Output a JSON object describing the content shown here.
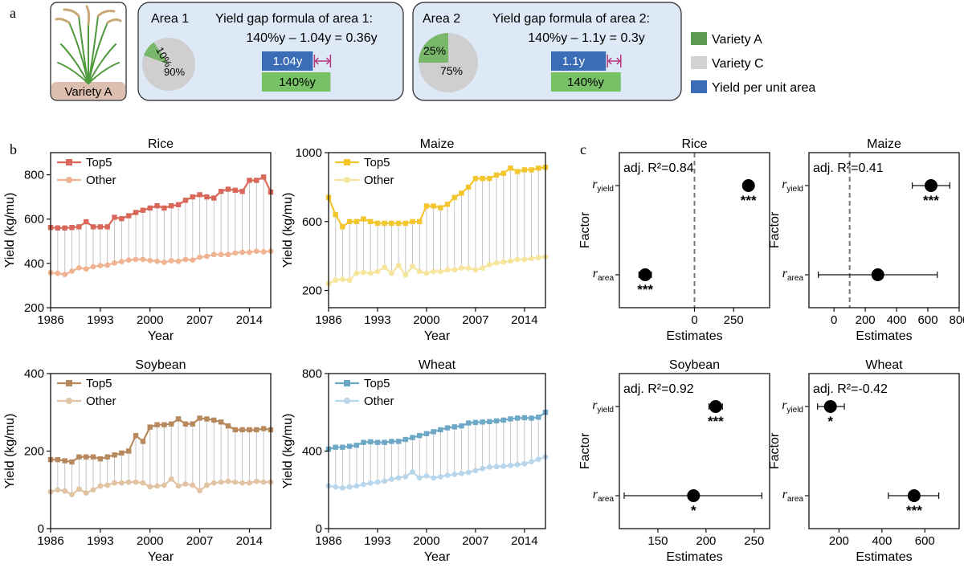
{
  "panel_letters": {
    "a": "a",
    "b": "b",
    "c": "c"
  },
  "panel_a": {
    "plant_label": "Variety A",
    "area1": {
      "title": "Area 1",
      "formula_title": "Yield gap formula of area 1:",
      "formula": "140%y – 1.04y = 0.36y",
      "pie": {
        "variety_a": 10,
        "variety_c": 90,
        "label_a": "10%",
        "label_c": "90%"
      },
      "bar_top_label": "1.04y",
      "bar_bottom_label": "140%y",
      "bar_top_value": 1.04,
      "bar_bottom_value": 1.4
    },
    "area2": {
      "title": "Area 2",
      "formula_title": "Yield gap formula of area 2:",
      "formula": "140%y – 1.1y = 0.3y",
      "pie": {
        "variety_a": 25,
        "variety_c": 75,
        "label_a": "25%",
        "label_c": "75%"
      },
      "bar_top_label": "1.1y",
      "bar_bottom_label": "140%y",
      "bar_top_value": 1.1,
      "bar_bottom_value": 1.4
    },
    "legend": [
      {
        "label": "Variety A",
        "color": "#5e9a4f"
      },
      {
        "label": "Variety C",
        "color": "#d3d3d3"
      },
      {
        "label": "Yield per unit area",
        "color": "#3a6db5"
      }
    ],
    "colors": {
      "bar_top": "#3a6db5",
      "bar_bottom": "#77c166",
      "gap": "#b4367f",
      "box_fill": "#dde9f6"
    }
  },
  "chart_data": [
    {
      "type": "line",
      "panel": "b",
      "title": "Rice",
      "xlabel": "Year",
      "ylabel": "Yield (kg/mu)",
      "x": [
        1986,
        1987,
        1988,
        1989,
        1990,
        1991,
        1992,
        1993,
        1994,
        1995,
        1996,
        1997,
        1998,
        1999,
        2000,
        2001,
        2002,
        2003,
        2004,
        2005,
        2006,
        2007,
        2008,
        2009,
        2010,
        2011,
        2012,
        2013,
        2014,
        2015,
        2016,
        2017
      ],
      "xlim": [
        1986,
        2017
      ],
      "ylim": [
        200,
        900
      ],
      "xticks": [
        "1986",
        "1993",
        "2000",
        "2007",
        "2014"
      ],
      "xtick_values": [
        1986,
        1993,
        2000,
        2007,
        2014
      ],
      "yticks": [
        "200",
        "400",
        "600",
        "800"
      ],
      "ytick_values": [
        200,
        400,
        600,
        800
      ],
      "series": [
        {
          "name": "Top5",
          "marker": "square",
          "color": "#d9685a",
          "values": [
            562,
            560,
            560,
            562,
            565,
            588,
            565,
            565,
            565,
            608,
            602,
            615,
            630,
            640,
            650,
            660,
            650,
            660,
            665,
            685,
            700,
            710,
            700,
            695,
            725,
            735,
            730,
            725,
            775,
            775,
            790,
            722
          ]
        },
        {
          "name": "Other",
          "marker": "circle",
          "color": "#f0b493",
          "values": [
            358,
            355,
            350,
            365,
            380,
            375,
            385,
            390,
            392,
            402,
            408,
            415,
            418,
            418,
            413,
            410,
            405,
            412,
            410,
            418,
            415,
            428,
            432,
            440,
            440,
            440,
            447,
            450,
            450,
            455,
            452,
            455
          ]
        }
      ]
    },
    {
      "type": "line",
      "panel": "b",
      "title": "Maize",
      "xlabel": "Year",
      "ylabel": "Yield (kg/mu)",
      "x": [
        1986,
        1987,
        1988,
        1989,
        1990,
        1991,
        1992,
        1993,
        1994,
        1995,
        1996,
        1997,
        1998,
        1999,
        2000,
        2001,
        2002,
        2003,
        2004,
        2005,
        2006,
        2007,
        2008,
        2009,
        2010,
        2011,
        2012,
        2013,
        2014,
        2015,
        2016,
        2017
      ],
      "xlim": [
        1986,
        2017
      ],
      "ylim": [
        100,
        1000
      ],
      "xticks": [
        "1986",
        "1993",
        "2000",
        "2007",
        "2014"
      ],
      "xtick_values": [
        1986,
        1993,
        2000,
        2007,
        2014
      ],
      "yticks": [
        "200",
        "600",
        "1000"
      ],
      "ytick_values": [
        200,
        600,
        1000
      ],
      "series": [
        {
          "name": "Top5",
          "marker": "square",
          "color": "#f2c62c",
          "values": [
            740,
            640,
            570,
            600,
            600,
            615,
            600,
            590,
            590,
            590,
            590,
            590,
            600,
            600,
            690,
            690,
            680,
            700,
            740,
            765,
            800,
            850,
            850,
            850,
            870,
            880,
            910,
            890,
            900,
            900,
            910,
            915
          ]
        },
        {
          "name": "Other",
          "marker": "circle",
          "color": "#f6e59c",
          "values": [
            240,
            260,
            265,
            260,
            300,
            305,
            300,
            310,
            335,
            300,
            345,
            290,
            340,
            310,
            300,
            310,
            310,
            320,
            320,
            330,
            330,
            320,
            330,
            350,
            360,
            365,
            370,
            380,
            380,
            385,
            390,
            395
          ]
        }
      ]
    },
    {
      "type": "line",
      "panel": "b",
      "title": "Soybean",
      "xlabel": "Year",
      "ylabel": "Yield (kg/mu)",
      "x": [
        1986,
        1987,
        1988,
        1989,
        1990,
        1991,
        1992,
        1993,
        1994,
        1995,
        1996,
        1997,
        1998,
        1999,
        2000,
        2001,
        2002,
        2003,
        2004,
        2005,
        2006,
        2007,
        2008,
        2009,
        2010,
        2011,
        2012,
        2013,
        2014,
        2015,
        2016,
        2017
      ],
      "xlim": [
        1986,
        2017
      ],
      "ylim": [
        0,
        400
      ],
      "xticks": [
        "1986",
        "1993",
        "2000",
        "2007",
        "2014"
      ],
      "xtick_values": [
        1986,
        1993,
        2000,
        2007,
        2014
      ],
      "yticks": [
        "0",
        "200",
        "400"
      ],
      "ytick_values": [
        0,
        200,
        400
      ],
      "series": [
        {
          "name": "Top5",
          "marker": "square",
          "color": "#b8895c",
          "values": [
            178,
            178,
            175,
            172,
            185,
            185,
            185,
            180,
            185,
            190,
            195,
            200,
            240,
            225,
            262,
            268,
            268,
            270,
            283,
            270,
            270,
            285,
            283,
            280,
            275,
            265,
            255,
            255,
            255,
            255,
            258,
            255
          ]
        },
        {
          "name": "Other",
          "marker": "circle",
          "color": "#e2c3a4",
          "values": [
            95,
            100,
            97,
            88,
            102,
            92,
            100,
            110,
            112,
            118,
            118,
            120,
            120,
            118,
            108,
            110,
            112,
            128,
            110,
            115,
            112,
            98,
            112,
            118,
            120,
            122,
            120,
            118,
            118,
            122,
            120,
            120
          ]
        }
      ]
    },
    {
      "type": "line",
      "panel": "b",
      "title": "Wheat",
      "xlabel": "Year",
      "ylabel": "Yield (kg/mu)",
      "x": [
        1986,
        1987,
        1988,
        1989,
        1990,
        1991,
        1992,
        1993,
        1994,
        1995,
        1996,
        1997,
        1998,
        1999,
        2000,
        2001,
        2002,
        2003,
        2004,
        2005,
        2006,
        2007,
        2008,
        2009,
        2010,
        2011,
        2012,
        2013,
        2014,
        2015,
        2016,
        2017
      ],
      "xlim": [
        1986,
        2017
      ],
      "ylim": [
        0,
        800
      ],
      "xticks": [
        "1986",
        "1993",
        "2000",
        "2007",
        "2014"
      ],
      "xtick_values": [
        1986,
        1993,
        2000,
        2007,
        2014
      ],
      "yticks": [
        "0",
        "400",
        "800"
      ],
      "ytick_values": [
        0,
        400,
        800
      ],
      "series": [
        {
          "name": "Top5",
          "marker": "square",
          "color": "#6da8c7",
          "values": [
            410,
            420,
            420,
            425,
            430,
            445,
            448,
            445,
            445,
            450,
            450,
            460,
            470,
            480,
            490,
            500,
            510,
            520,
            525,
            530,
            545,
            548,
            550,
            552,
            556,
            560,
            566,
            570,
            572,
            570,
            575,
            600
          ]
        },
        {
          "name": "Other",
          "marker": "circle",
          "color": "#b8d6ec",
          "values": [
            220,
            215,
            210,
            215,
            220,
            228,
            235,
            240,
            245,
            255,
            262,
            268,
            292,
            262,
            272,
            262,
            268,
            275,
            280,
            285,
            290,
            300,
            310,
            318,
            320,
            322,
            326,
            330,
            335,
            345,
            358,
            370
          ]
        }
      ]
    },
    {
      "type": "scatter",
      "panel": "c",
      "title": "Rice",
      "xlabel": "Estimates",
      "ylabel": "Factor",
      "annotation": "adj. R²=0.84",
      "xlim": [
        -480,
        480
      ],
      "xticks": [
        "0",
        "250"
      ],
      "xtick_values": [
        0,
        250
      ],
      "ref_line": 0,
      "factors": [
        "r_yield",
        "r_area"
      ],
      "factor_labels": [
        {
          "main": "r",
          "sub": "yield"
        },
        {
          "main": "r",
          "sub": "area"
        }
      ],
      "estimates": [
        345,
        -315
      ],
      "ci_low": [
        315,
        -355
      ],
      "ci_high": [
        375,
        -275
      ],
      "significance": [
        "***",
        "***"
      ]
    },
    {
      "type": "scatter",
      "panel": "c",
      "title": "Maize",
      "xlabel": "Estimates",
      "ylabel": "Factor",
      "annotation": "adj. R²=0.41",
      "xlim": [
        -160,
        800
      ],
      "xticks": [
        "0",
        "200",
        "400",
        "600",
        "800"
      ],
      "xtick_values": [
        0,
        200,
        400,
        600,
        800
      ],
      "ref_line": 100,
      "factors": [
        "r_yield",
        "r_area"
      ],
      "factor_labels": [
        {
          "main": "r",
          "sub": "yield"
        },
        {
          "main": "r",
          "sub": "area"
        }
      ],
      "estimates": [
        620,
        280
      ],
      "ci_low": [
        500,
        -100
      ],
      "ci_high": [
        740,
        660
      ],
      "significance": [
        "***",
        ""
      ]
    },
    {
      "type": "scatter",
      "panel": "c",
      "title": "Soybean",
      "xlabel": "Estimates",
      "ylabel": "Factor",
      "annotation": "adj. R²=0.92",
      "xlim": [
        110,
        266
      ],
      "xticks": [
        "150",
        "200",
        "250"
      ],
      "xtick_values": [
        150,
        200,
        250
      ],
      "factors": [
        "r_yield",
        "r_area"
      ],
      "factor_labels": [
        {
          "main": "r",
          "sub": "yield"
        },
        {
          "main": "r",
          "sub": "area"
        }
      ],
      "estimates": [
        210,
        187
      ],
      "ci_low": [
        203,
        115
      ],
      "ci_high": [
        217,
        258
      ],
      "significance": [
        "***",
        "*"
      ]
    },
    {
      "type": "scatter",
      "panel": "c",
      "title": "Wheat",
      "xlabel": "Estimates",
      "ylabel": "Factor",
      "annotation": "adj. R²=-0.42",
      "xlim": [
        60,
        760
      ],
      "xticks": [
        "200",
        "400",
        "600"
      ],
      "xtick_values": [
        200,
        400,
        600
      ],
      "factors": [
        "r_yield",
        "r_area"
      ],
      "factor_labels": [
        {
          "main": "r",
          "sub": "yield"
        },
        {
          "main": "r",
          "sub": "area"
        }
      ],
      "estimates": [
        160,
        550
      ],
      "ci_low": [
        100,
        430
      ],
      "ci_high": [
        225,
        665
      ],
      "significance": [
        "*",
        "***"
      ]
    }
  ]
}
